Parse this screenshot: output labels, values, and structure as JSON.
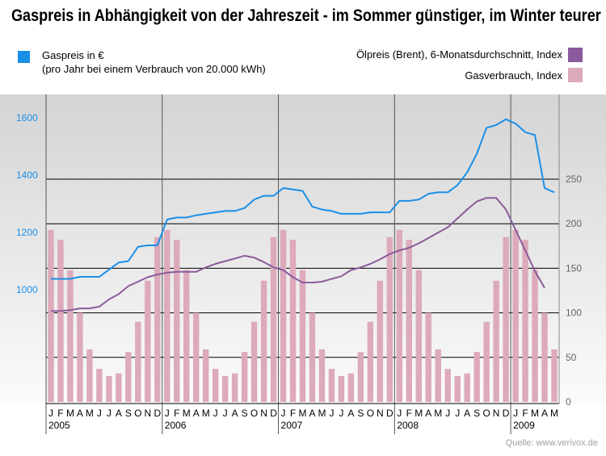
{
  "title": "Gaspreis in Abhängigkeit von der Jahreszeit - im Sommer günstiger, im Winter teurer",
  "source": "Quelle: www.verivox.de",
  "colors": {
    "gas_price": "#1a8fe8",
    "oil_price": "#8a5a9c",
    "consumption": "#ddaabb"
  },
  "legend": {
    "gas_price_line1": "Gaspreis in €",
    "gas_price_line2": "(pro Jahr bei einem Verbrauch von 20.000 kWh)",
    "oil_price": "Ölpreis (Brent), 6-Monatsdurchschnitt, Index",
    "consumption": "Gasverbrauch, Index"
  },
  "chart_data": {
    "type": "line+bar",
    "x_month_labels": [
      "J",
      "F",
      "M",
      "A",
      "M",
      "J",
      "J",
      "A",
      "S",
      "O",
      "N",
      "D",
      "J",
      "F",
      "M",
      "A",
      "M",
      "J",
      "J",
      "A",
      "S",
      "O",
      "N",
      "D",
      "J",
      "F",
      "M",
      "A",
      "M",
      "J",
      "J",
      "A",
      "S",
      "O",
      "N",
      "D",
      "J",
      "F",
      "M",
      "A",
      "M",
      "J",
      "J",
      "A",
      "S",
      "O",
      "N",
      "D",
      "J",
      "F",
      "M",
      "A",
      "M"
    ],
    "x_year_labels": [
      "2005",
      "2006",
      "2007",
      "2008",
      "2009"
    ],
    "y_left": {
      "ticks": [
        1000,
        1200,
        1400,
        1600
      ]
    },
    "y_right": {
      "ticks": [
        0,
        50,
        100,
        150,
        200,
        250
      ]
    },
    "series": [
      {
        "name": "Gaspreis in €",
        "axis": "left",
        "type": "line",
        "values": [
          1038,
          1038,
          1038,
          1045,
          1045,
          1045,
          1070,
          1095,
          1100,
          1150,
          1155,
          1155,
          1245,
          1252,
          1252,
          1260,
          1265,
          1270,
          1275,
          1275,
          1285,
          1315,
          1328,
          1328,
          1355,
          1350,
          1345,
          1290,
          1280,
          1275,
          1265,
          1265,
          1265,
          1270,
          1270,
          1270,
          1310,
          1310,
          1315,
          1335,
          1340,
          1340,
          1365,
          1410,
          1475,
          1565,
          1575,
          1595,
          1580,
          1550,
          1540,
          1355,
          1340
        ]
      },
      {
        "name": "Ölpreis (Brent), 6-Monatsdurchschnitt, Index",
        "axis": "right",
        "type": "line",
        "values": [
          102,
          102,
          103,
          105,
          105,
          107,
          115,
          121,
          130,
          135,
          140,
          143,
          145,
          146,
          146,
          146,
          151,
          155,
          158,
          161,
          164,
          162,
          157,
          151,
          148,
          140,
          134,
          134,
          135,
          138,
          141,
          148,
          151,
          155,
          160,
          166,
          170,
          173,
          178,
          184,
          190,
          196,
          206,
          216,
          225,
          229,
          229,
          216,
          193,
          170,
          147,
          128,
          null
        ]
      },
      {
        "name": "Gasverbrauch, Index",
        "axis": "right",
        "type": "bar",
        "values": [
          193,
          182,
          148,
          100,
          59,
          37,
          29,
          32,
          56,
          90,
          136,
          185,
          193,
          182,
          148,
          100,
          59,
          37,
          29,
          32,
          56,
          90,
          136,
          185,
          193,
          182,
          148,
          100,
          59,
          37,
          29,
          32,
          56,
          90,
          136,
          185,
          193,
          182,
          148,
          100,
          59,
          37,
          29,
          32,
          56,
          90,
          136,
          185,
          193,
          182,
          148,
          100,
          59
        ]
      }
    ]
  }
}
